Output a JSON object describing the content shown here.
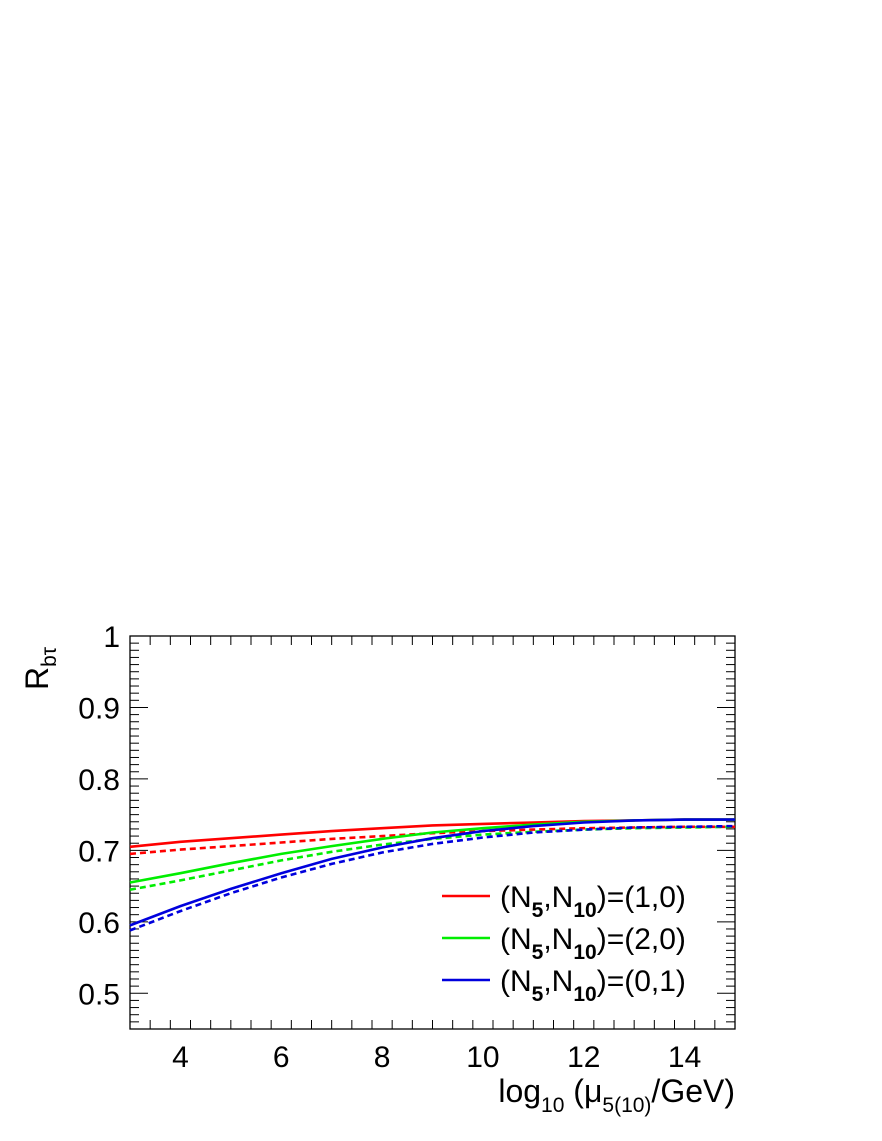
{
  "chart_data": {
    "type": "line",
    "ylabel_main": "R",
    "ylabel_sub": "bτ",
    "xlabel_pre": "log",
    "xlabel_sub1": "10",
    "xlabel_mid": " (μ",
    "xlabel_sub2": "5(10)",
    "xlabel_post": "/GeV)",
    "xlim": [
      3,
      15
    ],
    "ylim": [
      0.45,
      1.0
    ],
    "x_ticks": [
      4,
      6,
      8,
      10,
      12,
      14
    ],
    "x_tick_labels": [
      "4",
      "6",
      "8",
      "10",
      "12",
      "14"
    ],
    "y_ticks": [
      0.5,
      0.6,
      0.7,
      0.8,
      0.9,
      1.0
    ],
    "y_tick_labels": [
      "0.5",
      "0.6",
      "0.7",
      "0.8",
      "0.9",
      "1"
    ],
    "legend_position": "bottom-right",
    "series": [
      {
        "name": "(N5,N10)=(1,0)",
        "legend_label_parts": [
          "(N",
          "5",
          ",N",
          "10",
          ")=(1,0)"
        ],
        "color": "#ff0000",
        "solid": {
          "x": [
            3,
            4,
            5,
            6,
            7,
            8,
            9,
            10,
            11,
            12,
            13,
            14,
            15
          ],
          "y": [
            0.705,
            0.712,
            0.717,
            0.722,
            0.727,
            0.731,
            0.735,
            0.737,
            0.739,
            0.741,
            0.742,
            0.743,
            0.743
          ]
        },
        "dashed": {
          "x": [
            3,
            4,
            5,
            6,
            7,
            8,
            9,
            10,
            11,
            12,
            13,
            14,
            15
          ],
          "y": [
            0.695,
            0.701,
            0.706,
            0.711,
            0.716,
            0.72,
            0.724,
            0.727,
            0.729,
            0.731,
            0.732,
            0.733,
            0.733
          ]
        }
      },
      {
        "name": "(N5,N10)=(2,0)",
        "legend_label_parts": [
          "(N",
          "5",
          ",N",
          "10",
          ")=(2,0)"
        ],
        "color": "#00ee00",
        "solid": {
          "x": [
            3,
            4,
            5,
            6,
            7,
            8,
            9,
            10,
            11,
            12,
            13,
            14,
            15
          ],
          "y": [
            0.655,
            0.668,
            0.682,
            0.695,
            0.706,
            0.716,
            0.725,
            0.731,
            0.736,
            0.74,
            0.742,
            0.743,
            0.743
          ]
        },
        "dashed": {
          "x": [
            3,
            4,
            5,
            6,
            7,
            8,
            9,
            10,
            11,
            12,
            13,
            14,
            15
          ],
          "y": [
            0.645,
            0.658,
            0.672,
            0.686,
            0.698,
            0.708,
            0.716,
            0.722,
            0.726,
            0.729,
            0.731,
            0.732,
            0.733
          ]
        }
      },
      {
        "name": "(N5,N10)=(0,1)",
        "legend_label_parts": [
          "(N",
          "5",
          ",N",
          "10",
          ")=(0,1)"
        ],
        "color": "#0000dd",
        "solid": {
          "x": [
            3,
            4,
            5,
            6,
            7,
            8,
            9,
            10,
            11,
            12,
            13,
            14,
            15
          ],
          "y": [
            0.595,
            0.622,
            0.646,
            0.668,
            0.688,
            0.704,
            0.717,
            0.727,
            0.734,
            0.739,
            0.742,
            0.743,
            0.743
          ]
        },
        "dashed": {
          "x": [
            3,
            4,
            5,
            6,
            7,
            8,
            9,
            10,
            11,
            12,
            13,
            14,
            15
          ],
          "y": [
            0.588,
            0.615,
            0.64,
            0.662,
            0.681,
            0.697,
            0.709,
            0.718,
            0.725,
            0.729,
            0.732,
            0.733,
            0.734
          ]
        }
      }
    ]
  }
}
